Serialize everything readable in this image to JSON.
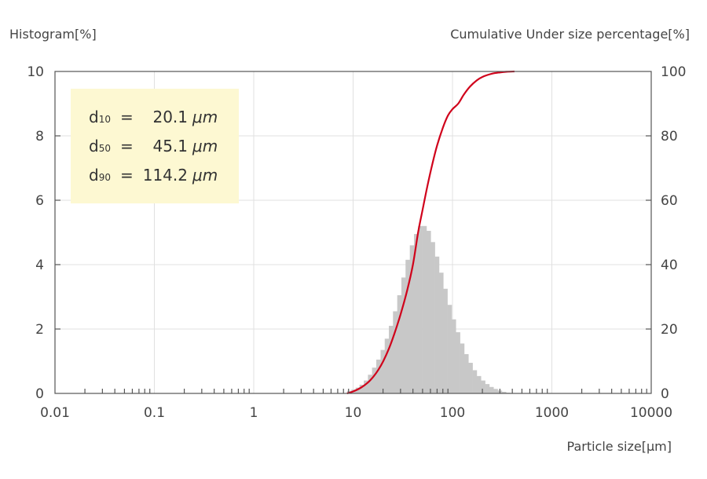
{
  "chart_data": {
    "type": "bar",
    "subtype": "histogram-with-cumulative-line",
    "x_scale": "log",
    "xlim": [
      0.01,
      10000
    ],
    "xlabel": "Particle size[µm]",
    "x_tick_labels": [
      "0.01",
      "0.1",
      "1",
      "10",
      "100",
      "1000",
      "10000"
    ],
    "ylabel_left": "Histogram[%]",
    "ylim_left": [
      0,
      10
    ],
    "y_left_tick_labels": [
      "0",
      "2",
      "4",
      "6",
      "8",
      "10"
    ],
    "ylabel_right": "Cumulative Under size percentage[%]",
    "ylim_right": [
      0,
      100
    ],
    "y_right_tick_labels": [
      "0",
      "20",
      "40",
      "60",
      "80",
      "100"
    ],
    "grid": "vertical and horizontal major gridlines",
    "colors": {
      "histogram": "#c8c8c8",
      "cumulative": "#d0021b",
      "stats_box": "#fdf8d2",
      "grid": "#e0e0e0",
      "axis": "#555555"
    },
    "stats": [
      {
        "label": "d",
        "sub": "10",
        "eq": "=",
        "value": "20.1",
        "unit": "μm"
      },
      {
        "label": "d",
        "sub": "50",
        "eq": "=",
        "value": "45.1",
        "unit": "μm"
      },
      {
        "label": "d",
        "sub": "90",
        "eq": "=",
        "value": "114.2",
        "unit": "μm"
      }
    ],
    "histogram": {
      "bin_lower_edges": [
        8.7,
        9.6,
        10.6,
        11.6,
        12.8,
        14.1,
        15.5,
        17.1,
        18.9,
        20.8,
        22.9,
        25.2,
        27.8,
        30.6,
        33.7,
        37.2,
        41.0,
        45.1,
        49.7,
        54.8,
        60.4,
        66.5,
        73.3,
        80.8,
        89.0,
        98.1,
        108.1,
        119.1,
        131.2,
        144.6,
        159.3,
        175.5,
        193.4,
        213.1,
        234.8,
        258.7,
        285.1,
        314.1,
        346.2
      ],
      "values": [
        0.08,
        0.12,
        0.18,
        0.27,
        0.4,
        0.58,
        0.8,
        1.05,
        1.35,
        1.7,
        2.1,
        2.55,
        3.05,
        3.6,
        4.15,
        4.6,
        4.95,
        5.2,
        5.2,
        5.05,
        4.7,
        4.25,
        3.75,
        3.25,
        2.75,
        2.3,
        1.9,
        1.55,
        1.22,
        0.95,
        0.72,
        0.54,
        0.4,
        0.29,
        0.2,
        0.14,
        0.09,
        0.05,
        0.02
      ],
      "bin_upper_edge": 381.4
    },
    "cumulative": {
      "x": [
        8.7,
        10,
        12,
        14,
        16,
        18,
        20.1,
        23,
        26,
        30,
        35,
        40,
        45.1,
        50,
        56,
        63,
        70,
        80,
        90,
        100,
        114.2,
        130,
        150,
        175,
        200,
        250,
        300,
        350,
        420
      ],
      "y": [
        0,
        0.6,
        1.8,
        3.3,
        5.2,
        7.4,
        10,
        14,
        18.5,
        24.5,
        32,
        40,
        50,
        57,
        64.5,
        71.5,
        77,
        82.5,
        86.3,
        88.3,
        90,
        92.8,
        95.3,
        97.2,
        98.3,
        99.3,
        99.7,
        99.9,
        100
      ]
    }
  }
}
